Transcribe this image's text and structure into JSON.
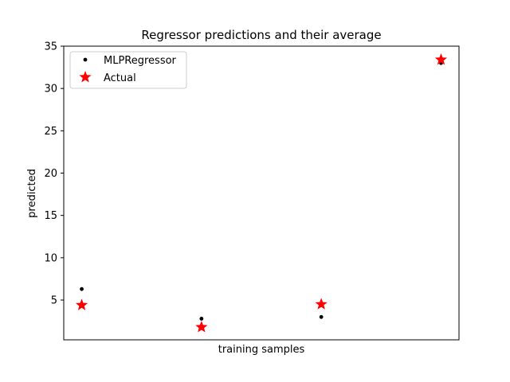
{
  "chart_data": {
    "type": "scatter",
    "title": "Regressor predictions and their average",
    "xlabel": "training samples",
    "ylabel": "predicted",
    "ylim": [
      0.3,
      35
    ],
    "yticks": [
      5,
      10,
      15,
      20,
      25,
      30,
      35
    ],
    "xticks_shown": false,
    "grid": false,
    "legend_position": "top-left",
    "x": [
      0,
      1,
      2,
      3
    ],
    "series": [
      {
        "name": "MLPRegressor",
        "marker": "dot",
        "color": "#000000",
        "values": [
          6.3,
          2.8,
          3.0,
          33.0
        ]
      },
      {
        "name": "Actual",
        "marker": "star",
        "color": "#ff0000",
        "values": [
          4.4,
          1.8,
          4.5,
          33.4
        ]
      }
    ]
  }
}
